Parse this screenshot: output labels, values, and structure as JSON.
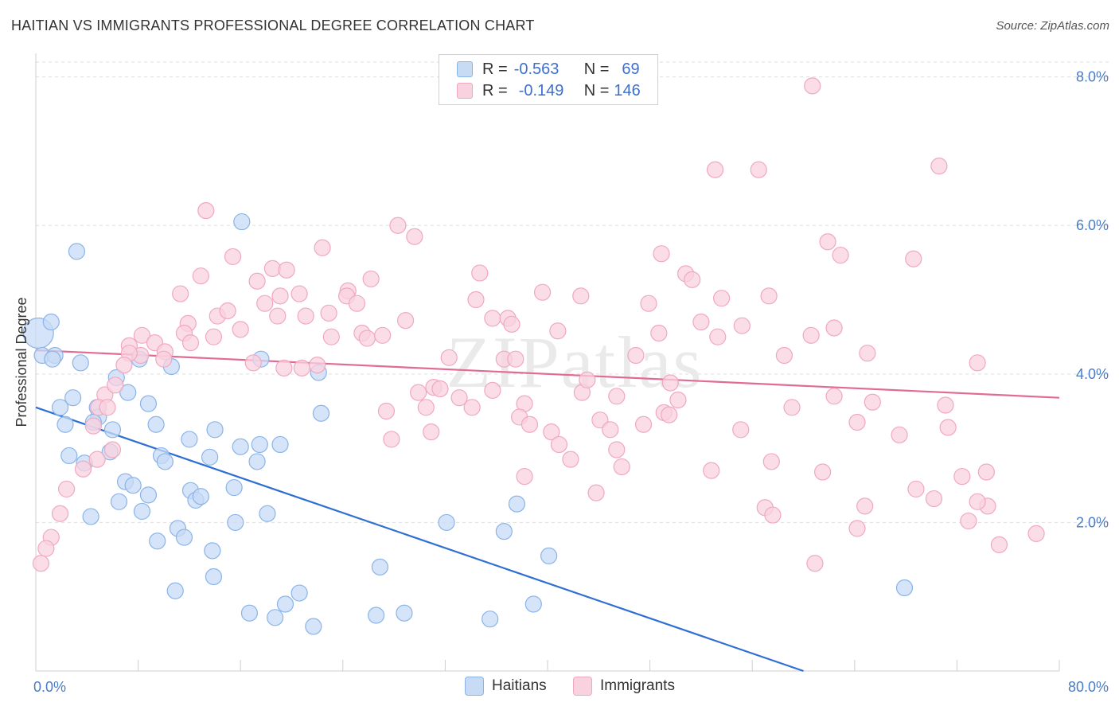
{
  "chart_data": {
    "type": "scatter",
    "title": "HAITIAN VS IMMIGRANTS PROFESSIONAL DEGREE CORRELATION CHART",
    "source": "Source: ZipAtlas.com",
    "ylabel": "Professional Degree",
    "xlim": [
      0,
      80
    ],
    "ylim": [
      0,
      8.2
    ],
    "y_ticks": [
      "2.0%",
      "4.0%",
      "6.0%",
      "8.0%"
    ],
    "y_tick_values": [
      2,
      4,
      6,
      8
    ],
    "x_tick_labels": [
      "0.0%",
      "80.0%"
    ],
    "watermark": "ZIPatlas",
    "legend_stats": [
      {
        "r_label": "R =",
        "r": "-0.563",
        "n_label": "N =",
        "n": "69"
      },
      {
        "r_label": "R =",
        "r": "-0.149",
        "n_label": "N =",
        "n": "146"
      }
    ],
    "series": [
      {
        "name": "Haitians",
        "color": "#8ab4e8",
        "fill": "#c7dbf5",
        "line_color": "#2f6fd3",
        "trend": [
          [
            0,
            3.55
          ],
          [
            60,
            0.0
          ]
        ],
        "points": [
          [
            0.2,
            4.55
          ],
          [
            0.5,
            4.25
          ],
          [
            1.2,
            4.7
          ],
          [
            3.2,
            5.65
          ],
          [
            1.5,
            4.25
          ],
          [
            3.5,
            4.15
          ],
          [
            6.3,
            3.95
          ],
          [
            8.1,
            4.2
          ],
          [
            10.6,
            4.1
          ],
          [
            16.1,
            6.05
          ],
          [
            17.6,
            4.2
          ],
          [
            22.1,
            4.02
          ],
          [
            4.8,
            3.55
          ],
          [
            1.9,
            3.55
          ],
          [
            2.9,
            3.68
          ],
          [
            4.9,
            3.42
          ],
          [
            7.2,
            3.75
          ],
          [
            8.8,
            3.6
          ],
          [
            2.3,
            3.32
          ],
          [
            4.5,
            3.35
          ],
          [
            6.0,
            3.25
          ],
          [
            9.4,
            3.32
          ],
          [
            12.0,
            3.12
          ],
          [
            14.0,
            3.25
          ],
          [
            16.0,
            3.02
          ],
          [
            17.5,
            3.05
          ],
          [
            19.1,
            3.05
          ],
          [
            22.3,
            3.47
          ],
          [
            2.6,
            2.9
          ],
          [
            3.8,
            2.8
          ],
          [
            5.8,
            2.95
          ],
          [
            9.8,
            2.9
          ],
          [
            10.1,
            2.82
          ],
          [
            13.6,
            2.88
          ],
          [
            17.3,
            2.82
          ],
          [
            7.0,
            2.55
          ],
          [
            7.6,
            2.5
          ],
          [
            8.8,
            2.37
          ],
          [
            12.1,
            2.43
          ],
          [
            12.5,
            2.3
          ],
          [
            12.9,
            2.35
          ],
          [
            15.5,
            2.47
          ],
          [
            6.5,
            2.28
          ],
          [
            8.3,
            2.15
          ],
          [
            4.3,
            2.08
          ],
          [
            15.6,
            2.0
          ],
          [
            18.1,
            2.12
          ],
          [
            9.5,
            1.75
          ],
          [
            11.1,
            1.92
          ],
          [
            11.6,
            1.8
          ],
          [
            13.8,
            1.62
          ],
          [
            13.9,
            1.27
          ],
          [
            10.9,
            1.08
          ],
          [
            20.6,
            1.05
          ],
          [
            26.9,
            1.4
          ],
          [
            16.7,
            0.78
          ],
          [
            18.7,
            0.72
          ],
          [
            19.5,
            0.9
          ],
          [
            21.7,
            0.6
          ],
          [
            26.6,
            0.75
          ],
          [
            28.8,
            0.78
          ],
          [
            35.5,
            0.7
          ],
          [
            38.9,
            0.9
          ],
          [
            36.6,
            1.88
          ],
          [
            40.1,
            1.55
          ],
          [
            32.1,
            2.0
          ],
          [
            37.6,
            2.25
          ],
          [
            67.9,
            1.12
          ],
          [
            1.3,
            4.2
          ]
        ],
        "sizes": [
          19,
          10,
          10,
          10,
          10,
          10,
          10,
          10,
          10,
          10,
          10,
          10,
          10,
          10,
          10,
          10,
          10,
          10,
          10,
          10,
          10,
          10,
          10,
          10,
          10,
          10,
          10,
          10,
          10,
          10,
          10,
          10,
          10,
          10,
          10,
          10,
          10,
          10,
          10,
          10,
          10,
          10,
          10,
          10,
          10,
          10,
          10,
          10,
          10,
          10,
          10,
          10,
          10,
          10,
          10,
          10,
          10,
          10,
          10,
          10,
          10,
          10,
          10,
          10,
          10,
          10,
          10,
          10,
          10
        ]
      },
      {
        "name": "Immigrants",
        "color": "#f0a8bf",
        "fill": "#f9d2df",
        "line_color": "#e06c93",
        "trend": [
          [
            0,
            4.32
          ],
          [
            80,
            3.68
          ]
        ],
        "points": [
          [
            60.7,
            7.88
          ],
          [
            53.1,
            6.75
          ],
          [
            56.5,
            6.75
          ],
          [
            70.6,
            6.8
          ],
          [
            13.3,
            6.2
          ],
          [
            28.3,
            6.0
          ],
          [
            29.6,
            5.85
          ],
          [
            22.4,
            5.7
          ],
          [
            15.4,
            5.58
          ],
          [
            18.5,
            5.42
          ],
          [
            19.6,
            5.4
          ],
          [
            12.9,
            5.32
          ],
          [
            17.3,
            5.25
          ],
          [
            26.2,
            5.28
          ],
          [
            34.7,
            5.36
          ],
          [
            48.9,
            5.62
          ],
          [
            61.9,
            5.78
          ],
          [
            62.9,
            5.6
          ],
          [
            68.6,
            5.55
          ],
          [
            50.8,
            5.35
          ],
          [
            51.3,
            5.27
          ],
          [
            11.3,
            5.08
          ],
          [
            19.1,
            5.05
          ],
          [
            20.6,
            5.08
          ],
          [
            24.4,
            5.12
          ],
          [
            24.3,
            5.05
          ],
          [
            25.1,
            4.95
          ],
          [
            17.9,
            4.95
          ],
          [
            34.4,
            5.0
          ],
          [
            39.6,
            5.1
          ],
          [
            42.6,
            5.05
          ],
          [
            47.9,
            4.95
          ],
          [
            53.6,
            5.02
          ],
          [
            57.3,
            5.05
          ],
          [
            14.2,
            4.78
          ],
          [
            15.0,
            4.85
          ],
          [
            11.9,
            4.68
          ],
          [
            18.9,
            4.78
          ],
          [
            21.1,
            4.78
          ],
          [
            22.9,
            4.82
          ],
          [
            28.9,
            4.72
          ],
          [
            35.7,
            4.75
          ],
          [
            36.9,
            4.75
          ],
          [
            37.2,
            4.67
          ],
          [
            40.8,
            4.58
          ],
          [
            52.0,
            4.7
          ],
          [
            55.2,
            4.65
          ],
          [
            62.4,
            4.62
          ],
          [
            8.3,
            4.52
          ],
          [
            7.3,
            4.38
          ],
          [
            9.3,
            4.42
          ],
          [
            10.1,
            4.3
          ],
          [
            11.6,
            4.55
          ],
          [
            13.9,
            4.5
          ],
          [
            16.0,
            4.6
          ],
          [
            23.1,
            4.5
          ],
          [
            25.5,
            4.55
          ],
          [
            25.9,
            4.48
          ],
          [
            27.1,
            4.52
          ],
          [
            12.1,
            4.42
          ],
          [
            8.2,
            4.25
          ],
          [
            7.3,
            4.28
          ],
          [
            10.0,
            4.2
          ],
          [
            17.0,
            4.15
          ],
          [
            19.4,
            4.08
          ],
          [
            20.8,
            4.08
          ],
          [
            22.0,
            4.12
          ],
          [
            32.3,
            4.22
          ],
          [
            36.6,
            4.2
          ],
          [
            37.5,
            4.2
          ],
          [
            46.9,
            4.25
          ],
          [
            48.7,
            4.55
          ],
          [
            53.3,
            4.5
          ],
          [
            58.5,
            4.25
          ],
          [
            60.6,
            4.52
          ],
          [
            65.0,
            4.28
          ],
          [
            73.6,
            4.15
          ],
          [
            6.9,
            4.12
          ],
          [
            5.4,
            3.72
          ],
          [
            6.2,
            3.85
          ],
          [
            4.9,
            3.55
          ],
          [
            5.6,
            3.55
          ],
          [
            4.5,
            3.3
          ],
          [
            27.4,
            3.5
          ],
          [
            29.9,
            3.75
          ],
          [
            30.5,
            3.55
          ],
          [
            31.1,
            3.82
          ],
          [
            31.6,
            3.8
          ],
          [
            33.1,
            3.68
          ],
          [
            34.1,
            3.55
          ],
          [
            35.7,
            3.78
          ],
          [
            38.2,
            3.6
          ],
          [
            42.7,
            3.75
          ],
          [
            43.1,
            3.92
          ],
          [
            45.4,
            3.7
          ],
          [
            49.6,
            3.88
          ],
          [
            50.2,
            3.65
          ],
          [
            59.1,
            3.55
          ],
          [
            62.4,
            3.7
          ],
          [
            64.2,
            3.35
          ],
          [
            65.4,
            3.62
          ],
          [
            71.1,
            3.58
          ],
          [
            37.8,
            3.42
          ],
          [
            38.6,
            3.32
          ],
          [
            40.3,
            3.22
          ],
          [
            44.1,
            3.38
          ],
          [
            44.9,
            3.25
          ],
          [
            47.5,
            3.32
          ],
          [
            49.1,
            3.48
          ],
          [
            49.5,
            3.45
          ],
          [
            27.8,
            3.12
          ],
          [
            30.9,
            3.22
          ],
          [
            40.9,
            3.05
          ],
          [
            45.4,
            2.98
          ],
          [
            55.1,
            3.25
          ],
          [
            67.5,
            3.18
          ],
          [
            71.3,
            3.28
          ],
          [
            3.7,
            2.72
          ],
          [
            6.0,
            2.98
          ],
          [
            4.8,
            2.85
          ],
          [
            41.8,
            2.85
          ],
          [
            45.8,
            2.75
          ],
          [
            52.8,
            2.7
          ],
          [
            57.5,
            2.82
          ],
          [
            61.5,
            2.68
          ],
          [
            72.4,
            2.62
          ],
          [
            74.3,
            2.68
          ],
          [
            2.4,
            2.45
          ],
          [
            38.2,
            2.62
          ],
          [
            43.8,
            2.4
          ],
          [
            68.8,
            2.45
          ],
          [
            74.4,
            2.22
          ],
          [
            73.6,
            2.28
          ],
          [
            1.9,
            2.12
          ],
          [
            57.0,
            2.2
          ],
          [
            57.6,
            2.1
          ],
          [
            64.8,
            2.22
          ],
          [
            70.2,
            2.32
          ],
          [
            72.9,
            2.02
          ],
          [
            64.2,
            1.92
          ],
          [
            78.2,
            1.85
          ],
          [
            1.2,
            1.8
          ],
          [
            0.8,
            1.65
          ],
          [
            0.4,
            1.45
          ],
          [
            60.9,
            1.45
          ],
          [
            75.3,
            1.7
          ]
        ],
        "sizes": [
          10,
          10,
          10,
          10,
          10,
          10,
          10,
          10,
          10,
          10,
          10,
          10,
          10,
          10,
          10,
          10,
          10,
          10,
          10,
          10,
          10,
          10,
          10,
          10,
          10,
          10,
          10,
          10,
          10,
          10,
          10,
          10,
          10,
          10,
          10,
          10,
          10,
          10,
          10,
          10,
          10,
          10,
          10,
          10,
          10,
          10,
          10,
          10,
          10,
          10,
          10,
          10,
          10,
          10,
          10,
          10,
          10,
          10,
          10,
          10,
          10,
          10,
          10,
          10,
          10,
          10,
          10,
          10,
          10,
          10,
          10,
          10,
          10,
          10,
          10,
          10,
          10,
          10,
          10,
          10,
          10,
          10,
          10,
          10,
          10,
          10,
          10,
          10,
          10,
          10,
          10,
          10,
          10,
          10,
          10,
          10,
          10,
          10,
          10,
          10,
          10,
          10,
          10,
          10,
          10,
          10,
          10,
          10,
          10,
          10,
          10,
          10,
          10,
          10,
          10,
          10,
          10,
          10,
          10,
          10,
          10,
          10,
          10,
          10,
          10,
          10,
          10,
          10,
          10,
          10,
          10,
          10,
          10,
          10,
          10,
          10,
          10,
          10,
          10,
          10,
          10,
          10,
          10,
          10,
          10,
          10
        ]
      }
    ]
  }
}
